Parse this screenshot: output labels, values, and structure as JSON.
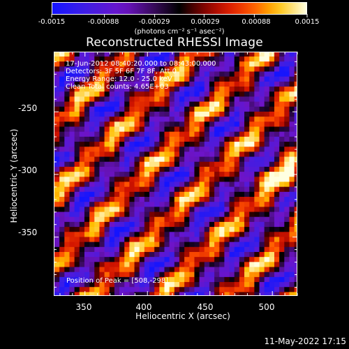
{
  "colorbar": {
    "labels": [
      "-0.0015",
      "-0.00088",
      "-0.00029",
      "0.00029",
      "0.00088",
      "0.0015"
    ],
    "units": "(photons cm⁻² s⁻¹ asec⁻²)"
  },
  "title": "Reconstructed RHESSI Image",
  "annotations": {
    "time": "17-Jun-2012 08:40:20.000 to 08:43:00.000",
    "detectors": "Detectors: 3F 5F 6F 7F 8F, Att 0",
    "energy": "Energy Range: 12.0 - 25.0 keV",
    "method": "Clean     Total counts: 4.65E+03",
    "peak": "Position of Peak = [508,-298]"
  },
  "axes": {
    "xlabel": "Heliocentric X (arcsec)",
    "ylabel": "Heliocentric Y (arcsec)",
    "xticks": [
      "350",
      "400",
      "450",
      "500"
    ],
    "yticks": [
      "-250",
      "-300",
      "-350"
    ]
  },
  "timestamp": "11-May-2022 17:15",
  "chart_data": {
    "type": "heatmap",
    "title": "Reconstructed RHESSI Image",
    "xlabel": "Heliocentric X (arcsec)",
    "ylabel": "Heliocentric Y (arcsec)",
    "xlim": [
      325,
      520
    ],
    "ylim": [
      -397,
      -202
    ],
    "xticks": [
      350,
      400,
      450,
      500
    ],
    "yticks": [
      -250,
      -300,
      -350
    ],
    "color_scale": {
      "min": -0.0015,
      "max": 0.0015,
      "ticks": [
        -0.0015,
        -0.00088,
        -0.00029,
        0.00029,
        0.00088,
        0.0015
      ],
      "colormap": "blue-purple-black-red-yellow-white",
      "units": "photons cm^-2 s^-1 asec^-2"
    },
    "peak": {
      "x": 508,
      "y": -298
    },
    "pixel_size_arcsec": 4,
    "pattern": {
      "description": "diagonal stripes (bottom-left to top-right) alternating positive and negative flux",
      "stripe_period_arcsec": 55,
      "stripe_direction": "lower-left to upper-right"
    },
    "colors": [
      "#1a1aff",
      "#6a10c8",
      "#2a0a40",
      "#000000",
      "#b01010",
      "#ff3c00",
      "#ffc000",
      "#ffffe0"
    ]
  }
}
